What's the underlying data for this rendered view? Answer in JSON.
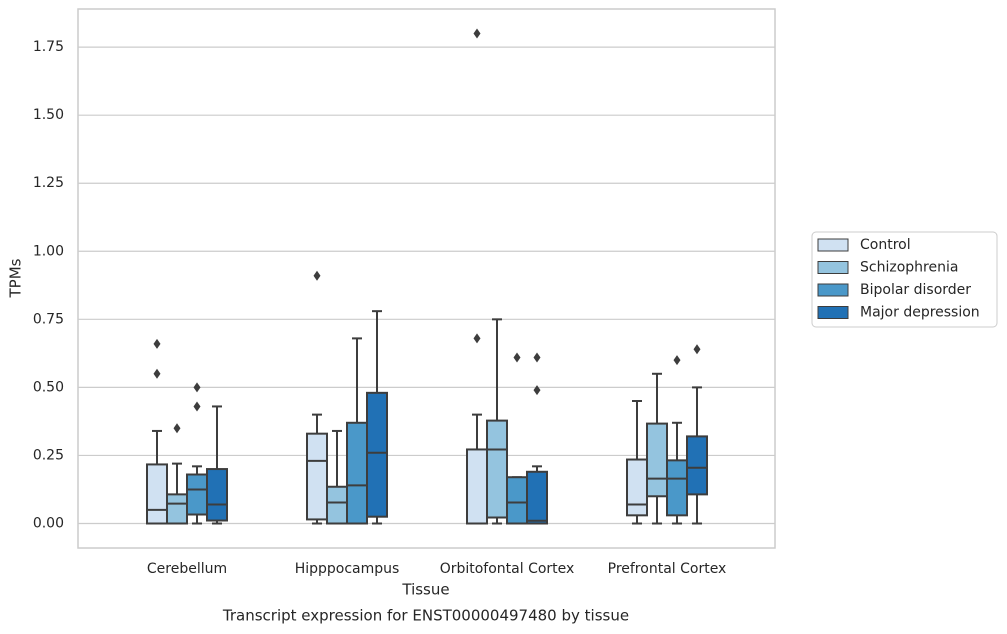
{
  "chart_data": {
    "type": "box",
    "title": "Transcript expression for ENST00000497480 by tissue",
    "xlabel": "Tissue",
    "ylabel": "TPMs",
    "categories": [
      "Cerebellum",
      "Hipppocampus",
      "Orbitofontal Cortex",
      "Prefrontal Cortex"
    ],
    "ylim": [
      -0.09,
      1.89
    ],
    "yticks": [
      {
        "value": 0,
        "label": "0.00"
      },
      {
        "value": 0.25,
        "label": "0.25"
      },
      {
        "value": 0.5,
        "label": "0.50"
      },
      {
        "value": 0.75,
        "label": "0.75"
      },
      {
        "value": 1,
        "label": "1.00"
      },
      {
        "value": 1.25,
        "label": "1.25"
      },
      {
        "value": 1.5,
        "label": "1.50"
      },
      {
        "value": 1.75,
        "label": "1.75"
      }
    ],
    "grid": true,
    "legend": "right",
    "series": [
      {
        "name": "Control",
        "color": "#d0e1f2",
        "stats": [
          {
            "whislo": 0,
            "q1": 0,
            "med": 0.05,
            "q3": 0.217,
            "whishi": 0.34,
            "fliers": [
              0.55,
              0.66
            ]
          },
          {
            "whislo": 0,
            "q1": 0.015,
            "med": 0.23,
            "q3": 0.33,
            "whishi": 0.4,
            "fliers": [
              0.91
            ]
          },
          {
            "whislo": 0,
            "q1": 0,
            "med": 0,
            "q3": 0.272,
            "whishi": 0.4,
            "fliers": [
              0.68,
              1.8
            ]
          },
          {
            "whislo": 0,
            "q1": 0.03,
            "med": 0.07,
            "q3": 0.235,
            "whishi": 0.45,
            "fliers": []
          }
        ]
      },
      {
        "name": "Schizophrenia",
        "color": "#94c4df",
        "stats": [
          {
            "whislo": 0,
            "q1": 0,
            "med": 0.073,
            "q3": 0.107,
            "whishi": 0.22,
            "fliers": [
              0.35
            ]
          },
          {
            "whislo": 0,
            "q1": 0,
            "med": 0.077,
            "q3": 0.135,
            "whishi": 0.34,
            "fliers": []
          },
          {
            "whislo": 0,
            "q1": 0.022,
            "med": 0.272,
            "q3": 0.378,
            "whishi": 0.75,
            "fliers": []
          },
          {
            "whislo": 0,
            "q1": 0.1,
            "med": 0.165,
            "q3": 0.367,
            "whishi": 0.55,
            "fliers": []
          }
        ]
      },
      {
        "name": "Bipolar disorder",
        "color": "#4a98c9",
        "stats": [
          {
            "whislo": 0,
            "q1": 0.033,
            "med": 0.125,
            "q3": 0.18,
            "whishi": 0.21,
            "fliers": [
              0.43,
              0.5
            ]
          },
          {
            "whislo": 0,
            "q1": 0,
            "med": 0.14,
            "q3": 0.37,
            "whishi": 0.68,
            "fliers": []
          },
          {
            "whislo": 0,
            "q1": 0,
            "med": 0.077,
            "q3": 0.17,
            "whishi": 0.17,
            "fliers": [
              0.61
            ]
          },
          {
            "whislo": 0,
            "q1": 0.03,
            "med": 0.165,
            "q3": 0.232,
            "whishi": 0.37,
            "fliers": [
              0.6
            ]
          }
        ]
      },
      {
        "name": "Major depression",
        "color": "#2171b5",
        "stats": [
          {
            "whislo": 0,
            "q1": 0.011,
            "med": 0.07,
            "q3": 0.2,
            "whishi": 0.43,
            "fliers": []
          },
          {
            "whislo": 0,
            "q1": 0.025,
            "med": 0.26,
            "q3": 0.48,
            "whishi": 0.78,
            "fliers": []
          },
          {
            "whislo": 0,
            "q1": 0,
            "med": 0.01,
            "q3": 0.19,
            "whishi": 0.21,
            "fliers": [
              0.49,
              0.61
            ]
          },
          {
            "whislo": 0,
            "q1": 0.107,
            "med": 0.205,
            "q3": 0.32,
            "whishi": 0.5,
            "fliers": [
              0.64
            ]
          }
        ]
      }
    ]
  }
}
